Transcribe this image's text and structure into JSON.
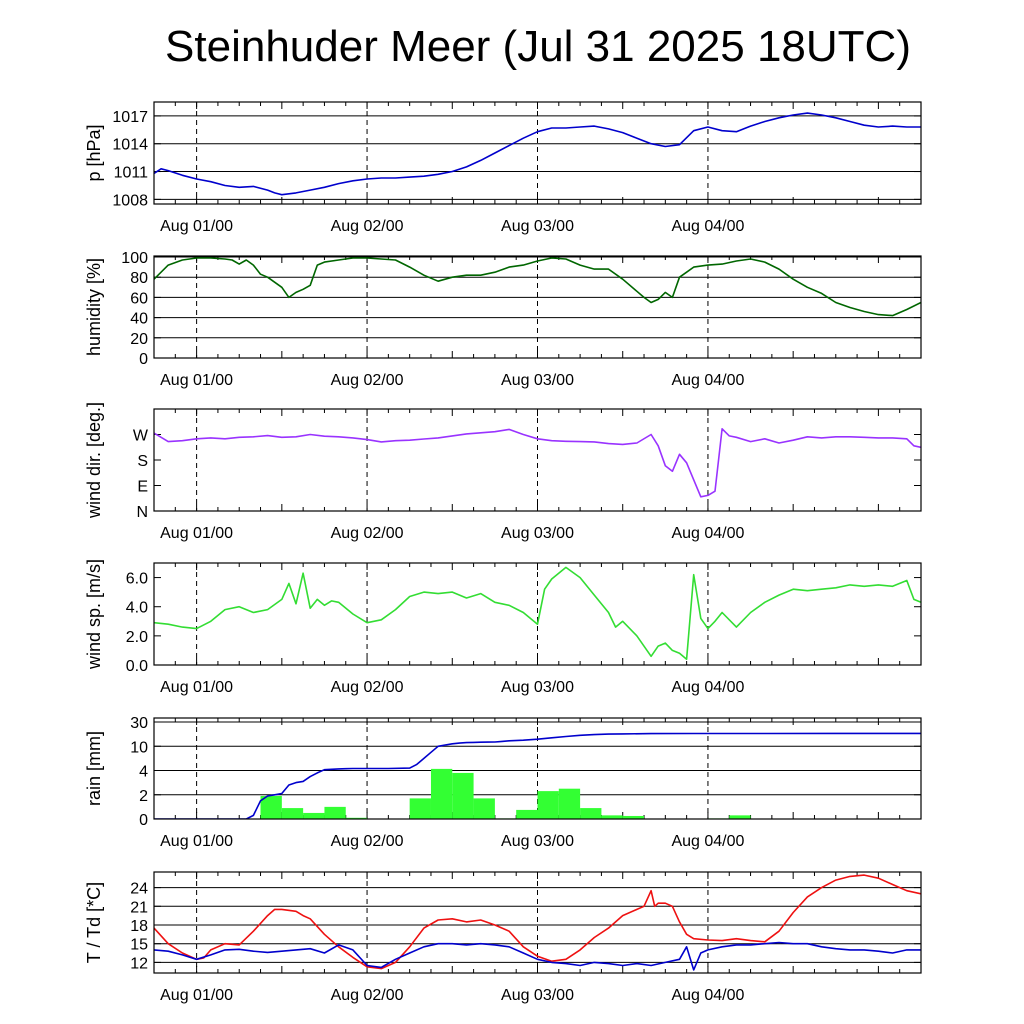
{
  "title": "Steinhuder Meer (Jul 31 2025 18UTC)",
  "x_tick_labels": [
    "Aug 01/00",
    "Aug 02/00",
    "Aug 03/00",
    "Aug 04/00"
  ],
  "chart_data": [
    {
      "type": "line",
      "ylabel": "p [hPa]",
      "ylim": [
        1007.5,
        1018.5
      ],
      "yticks": [
        1008,
        1011,
        1014,
        1017
      ],
      "grid": true,
      "x_range_hours": [
        -6,
        102
      ],
      "series": [
        {
          "color": "#0000cc",
          "x": [
            -6,
            -5,
            -4,
            -2,
            0,
            2,
            4,
            6,
            8,
            10,
            11,
            12,
            14,
            16,
            18,
            20,
            22,
            24,
            26,
            28,
            30,
            32,
            34,
            36,
            38,
            40,
            42,
            44,
            46,
            48,
            50,
            52,
            54,
            56,
            58,
            60,
            62,
            64,
            66,
            68,
            70,
            72,
            74,
            76,
            78,
            80,
            82,
            84,
            86,
            88,
            90,
            92,
            94,
            96,
            98,
            100,
            102
          ],
          "y": [
            1010.8,
            1011.3,
            1011.1,
            1010.6,
            1010.2,
            1009.9,
            1009.5,
            1009.3,
            1009.4,
            1009.0,
            1008.7,
            1008.5,
            1008.7,
            1009.0,
            1009.3,
            1009.7,
            1010.0,
            1010.2,
            1010.3,
            1010.3,
            1010.4,
            1010.5,
            1010.7,
            1011.0,
            1011.5,
            1012.2,
            1013.0,
            1013.8,
            1014.6,
            1015.3,
            1015.7,
            1015.7,
            1015.8,
            1015.9,
            1015.6,
            1015.2,
            1014.6,
            1014.0,
            1013.7,
            1013.9,
            1015.4,
            1015.8,
            1015.4,
            1015.3,
            1015.9,
            1016.4,
            1016.8,
            1017.1,
            1017.3,
            1017.1,
            1016.8,
            1016.4,
            1016.0,
            1015.8,
            1015.9,
            1015.8,
            1015.8
          ]
        }
      ]
    },
    {
      "type": "line",
      "ylabel": "humidity [%]",
      "ylim": [
        0,
        101
      ],
      "yticks": [
        0,
        20,
        40,
        60,
        80,
        100
      ],
      "grid": true,
      "x_range_hours": [
        -6,
        102
      ],
      "series": [
        {
          "color": "#006600",
          "x": [
            -6,
            -4,
            -2,
            0,
            2,
            4,
            5,
            6,
            7,
            8,
            9,
            10,
            12,
            13,
            14,
            15,
            16,
            17,
            18,
            20,
            22,
            24,
            26,
            28,
            30,
            32,
            34,
            36,
            38,
            40,
            42,
            44,
            46,
            48,
            50,
            52,
            54,
            56,
            58,
            60,
            62,
            63,
            64,
            65,
            66,
            67,
            68,
            69,
            70,
            72,
            74,
            76,
            78,
            80,
            82,
            84,
            86,
            88,
            90,
            92,
            94,
            96,
            98,
            100,
            102
          ],
          "y": [
            78,
            92,
            97,
            99,
            99,
            98,
            97,
            93,
            97,
            92,
            83,
            80,
            70,
            60,
            65,
            68,
            72,
            92,
            95,
            97,
            99,
            99,
            98,
            97,
            90,
            82,
            76,
            80,
            82,
            82,
            85,
            90,
            92,
            96,
            99,
            98,
            92,
            88,
            88,
            78,
            66,
            60,
            55,
            58,
            65,
            60,
            80,
            85,
            90,
            92,
            93,
            96,
            98,
            95,
            88,
            78,
            70,
            64,
            55,
            50,
            46,
            43,
            42,
            48,
            55
          ]
        }
      ]
    },
    {
      "type": "line",
      "ylabel": "wind dir. [deg.]",
      "ylim": [
        0,
        360
      ],
      "yticks": [
        0,
        90,
        180,
        270
      ],
      "ytick_labels": [
        "N",
        "E",
        "S",
        "W"
      ],
      "grid": false,
      "x_range_hours": [
        -6,
        102
      ],
      "series": [
        {
          "color": "#9933ff",
          "x": [
            -6,
            -4,
            -2,
            0,
            2,
            4,
            6,
            8,
            10,
            12,
            14,
            16,
            18,
            20,
            22,
            24,
            26,
            28,
            30,
            32,
            34,
            36,
            38,
            40,
            42,
            44,
            46,
            48,
            50,
            52,
            54,
            56,
            58,
            60,
            62,
            64,
            65,
            66,
            67,
            68,
            69,
            70,
            71,
            72,
            73,
            74,
            75,
            76,
            78,
            80,
            82,
            84,
            86,
            88,
            90,
            92,
            94,
            96,
            98,
            100,
            101,
            102
          ],
          "y": [
            275,
            245,
            248,
            255,
            258,
            255,
            260,
            262,
            266,
            260,
            262,
            270,
            264,
            262,
            258,
            252,
            244,
            248,
            250,
            254,
            258,
            265,
            272,
            276,
            280,
            288,
            270,
            255,
            248,
            246,
            245,
            244,
            238,
            235,
            240,
            270,
            230,
            160,
            140,
            200,
            170,
            110,
            50,
            55,
            70,
            290,
            265,
            260,
            245,
            255,
            240,
            250,
            262,
            258,
            262,
            262,
            260,
            258,
            258,
            255,
            230,
            225
          ]
        }
      ]
    },
    {
      "type": "line",
      "ylabel": "wind sp. [m/s]",
      "ylim": [
        0,
        7
      ],
      "yticks": [
        0.0,
        2.0,
        4.0,
        6.0
      ],
      "ytick_labels": [
        "0.0",
        "2.0",
        "4.0",
        "6.0"
      ],
      "grid": false,
      "x_range_hours": [
        -6,
        102
      ],
      "series": [
        {
          "color": "#33dd33",
          "x": [
            -6,
            -4,
            -2,
            0,
            2,
            4,
            6,
            8,
            10,
            12,
            13,
            14,
            15,
            16,
            17,
            18,
            19,
            20,
            22,
            24,
            26,
            28,
            30,
            32,
            34,
            36,
            38,
            40,
            42,
            44,
            46,
            48,
            49,
            50,
            52,
            54,
            56,
            58,
            59,
            60,
            62,
            64,
            65,
            66,
            67,
            68,
            69,
            70,
            71,
            72,
            73,
            74,
            76,
            78,
            80,
            82,
            84,
            86,
            88,
            90,
            92,
            94,
            96,
            98,
            100,
            101,
            102
          ],
          "y": [
            2.9,
            2.8,
            2.6,
            2.5,
            3.0,
            3.8,
            4.0,
            3.6,
            3.8,
            4.5,
            5.6,
            4.2,
            6.3,
            3.9,
            4.5,
            4.1,
            4.4,
            4.3,
            3.5,
            2.9,
            3.1,
            3.8,
            4.7,
            5.0,
            4.9,
            5.0,
            4.6,
            4.9,
            4.3,
            4.1,
            3.6,
            2.8,
            5.2,
            5.9,
            6.7,
            6.0,
            4.8,
            3.6,
            2.6,
            3.0,
            2.0,
            0.6,
            1.3,
            1.5,
            1.0,
            0.8,
            0.4,
            6.2,
            3.2,
            2.5,
            3.0,
            3.6,
            2.6,
            3.6,
            4.3,
            4.8,
            5.2,
            5.1,
            5.2,
            5.3,
            5.5,
            5.4,
            5.5,
            5.4,
            5.8,
            4.5,
            4.3
          ]
        }
      ]
    },
    {
      "type": "bar+line",
      "ylabel": "rain [mm]",
      "yticks": [
        0,
        2,
        4,
        10,
        30
      ],
      "ytick_labels": [
        "0",
        "2",
        "4",
        "10",
        "30"
      ],
      "grid": true,
      "x_range_hours": [
        -6,
        102
      ],
      "bars": {
        "color": "#33ff33",
        "interval_hours": 3,
        "start_hours": [
          9,
          12,
          15,
          18,
          21,
          24,
          30,
          33,
          36,
          39,
          42,
          45,
          48,
          51,
          54,
          57,
          60,
          63,
          66,
          69,
          72,
          75,
          78,
          81,
          84,
          87
        ],
        "values": [
          1.9,
          0.9,
          0.5,
          1.0,
          0.1,
          0.0,
          1.7,
          4.4,
          3.8,
          1.7,
          0.05,
          0.75,
          2.3,
          2.5,
          0.9,
          0.3,
          0.25,
          0.0,
          0.0,
          0.0,
          0.05,
          0.3,
          0.0,
          0.0,
          0.0,
          0.0
        ]
      },
      "series": [
        {
          "name": "",
          "color": "#0000cc",
          "x": [
            -6,
            7,
            8,
            9,
            10,
            11,
            12,
            13,
            14,
            15,
            16,
            17,
            18,
            19,
            20,
            21,
            22,
            24,
            27,
            30,
            31,
            32,
            33,
            34,
            35,
            36,
            37,
            38,
            39,
            40,
            41,
            42,
            43,
            44,
            46,
            48,
            50,
            52,
            54,
            56,
            58,
            60,
            64,
            70,
            80,
            90,
            102
          ],
          "y": [
            0,
            0,
            0.3,
            1.5,
            1.9,
            2.0,
            2.1,
            2.8,
            3.0,
            3.1,
            3.5,
            3.8,
            4.2,
            4.3,
            4.4,
            4.45,
            4.5,
            4.5,
            4.5,
            4.6,
            5.5,
            7.0,
            8.5,
            10.0,
            11.0,
            12.0,
            12.6,
            13.0,
            13.2,
            13.3,
            13.4,
            13.5,
            14.0,
            14.5,
            15.0,
            15.8,
            17.0,
            18.0,
            19.0,
            19.6,
            20.0,
            20.2,
            20.4,
            20.5,
            20.5,
            20.6,
            20.6
          ]
        }
      ]
    },
    {
      "type": "line",
      "ylabel": "T / Td [*C]",
      "ylim": [
        10.3,
        26.5
      ],
      "yticks": [
        12,
        15,
        18,
        21,
        24
      ],
      "grid": true,
      "x_range_hours": [
        -6,
        102
      ],
      "series": [
        {
          "color": "#ee1111",
          "x": [
            -6,
            -4,
            -2,
            0,
            1,
            2,
            4,
            6,
            8,
            10,
            11,
            12,
            14,
            15,
            16,
            18,
            20,
            22,
            24,
            26,
            28,
            30,
            32,
            34,
            36,
            38,
            40,
            42,
            44,
            46,
            48,
            50,
            52,
            54,
            56,
            58,
            60,
            62,
            63,
            64,
            64.5,
            65,
            66,
            67,
            68,
            69,
            70,
            72,
            74,
            76,
            78,
            80,
            82,
            84,
            86,
            88,
            90,
            92,
            94,
            96,
            98,
            100,
            102
          ],
          "y": [
            17.5,
            15.0,
            13.5,
            12.5,
            12.7,
            14.0,
            15.0,
            14.8,
            17.0,
            19.5,
            20.5,
            20.5,
            20.2,
            19.5,
            19.0,
            16.5,
            14.5,
            12.8,
            11.3,
            11.0,
            12.0,
            14.5,
            17.5,
            18.8,
            19.0,
            18.5,
            18.8,
            18.0,
            17.0,
            14.5,
            13.0,
            12.2,
            12.5,
            14.0,
            16.0,
            17.5,
            19.5,
            20.5,
            21.0,
            23.5,
            21.0,
            21.5,
            21.5,
            21.0,
            18.5,
            16.5,
            15.8,
            15.6,
            15.5,
            15.8,
            15.5,
            15.3,
            17.0,
            20.0,
            22.5,
            24.0,
            25.2,
            25.8,
            26.0,
            25.5,
            24.5,
            23.5,
            23.0
          ]
        },
        {
          "color": "#0000cc",
          "x": [
            -6,
            -4,
            -2,
            0,
            2,
            4,
            6,
            8,
            10,
            12,
            14,
            16,
            18,
            20,
            22,
            24,
            26,
            28,
            30,
            32,
            34,
            36,
            38,
            40,
            42,
            44,
            46,
            48,
            50,
            52,
            54,
            56,
            58,
            60,
            62,
            64,
            66,
            68,
            69,
            70,
            71,
            72,
            74,
            76,
            78,
            80,
            82,
            84,
            86,
            88,
            90,
            92,
            94,
            96,
            98,
            100,
            102
          ],
          "y": [
            14.0,
            13.8,
            13.2,
            12.5,
            13.2,
            14.0,
            14.1,
            13.8,
            13.6,
            13.8,
            14.0,
            14.2,
            13.5,
            14.8,
            14.0,
            11.5,
            11.2,
            12.5,
            13.5,
            14.5,
            15.0,
            15.0,
            14.8,
            15.0,
            14.8,
            14.5,
            13.5,
            12.5,
            12.0,
            11.8,
            11.5,
            12.0,
            11.8,
            11.5,
            11.8,
            11.5,
            12.0,
            12.5,
            14.5,
            10.8,
            13.5,
            14.0,
            14.5,
            14.8,
            14.8,
            15.0,
            15.2,
            15.0,
            15.0,
            14.5,
            14.2,
            14.0,
            14.0,
            13.8,
            13.5,
            14.0,
            14.0
          ]
        }
      ]
    }
  ]
}
